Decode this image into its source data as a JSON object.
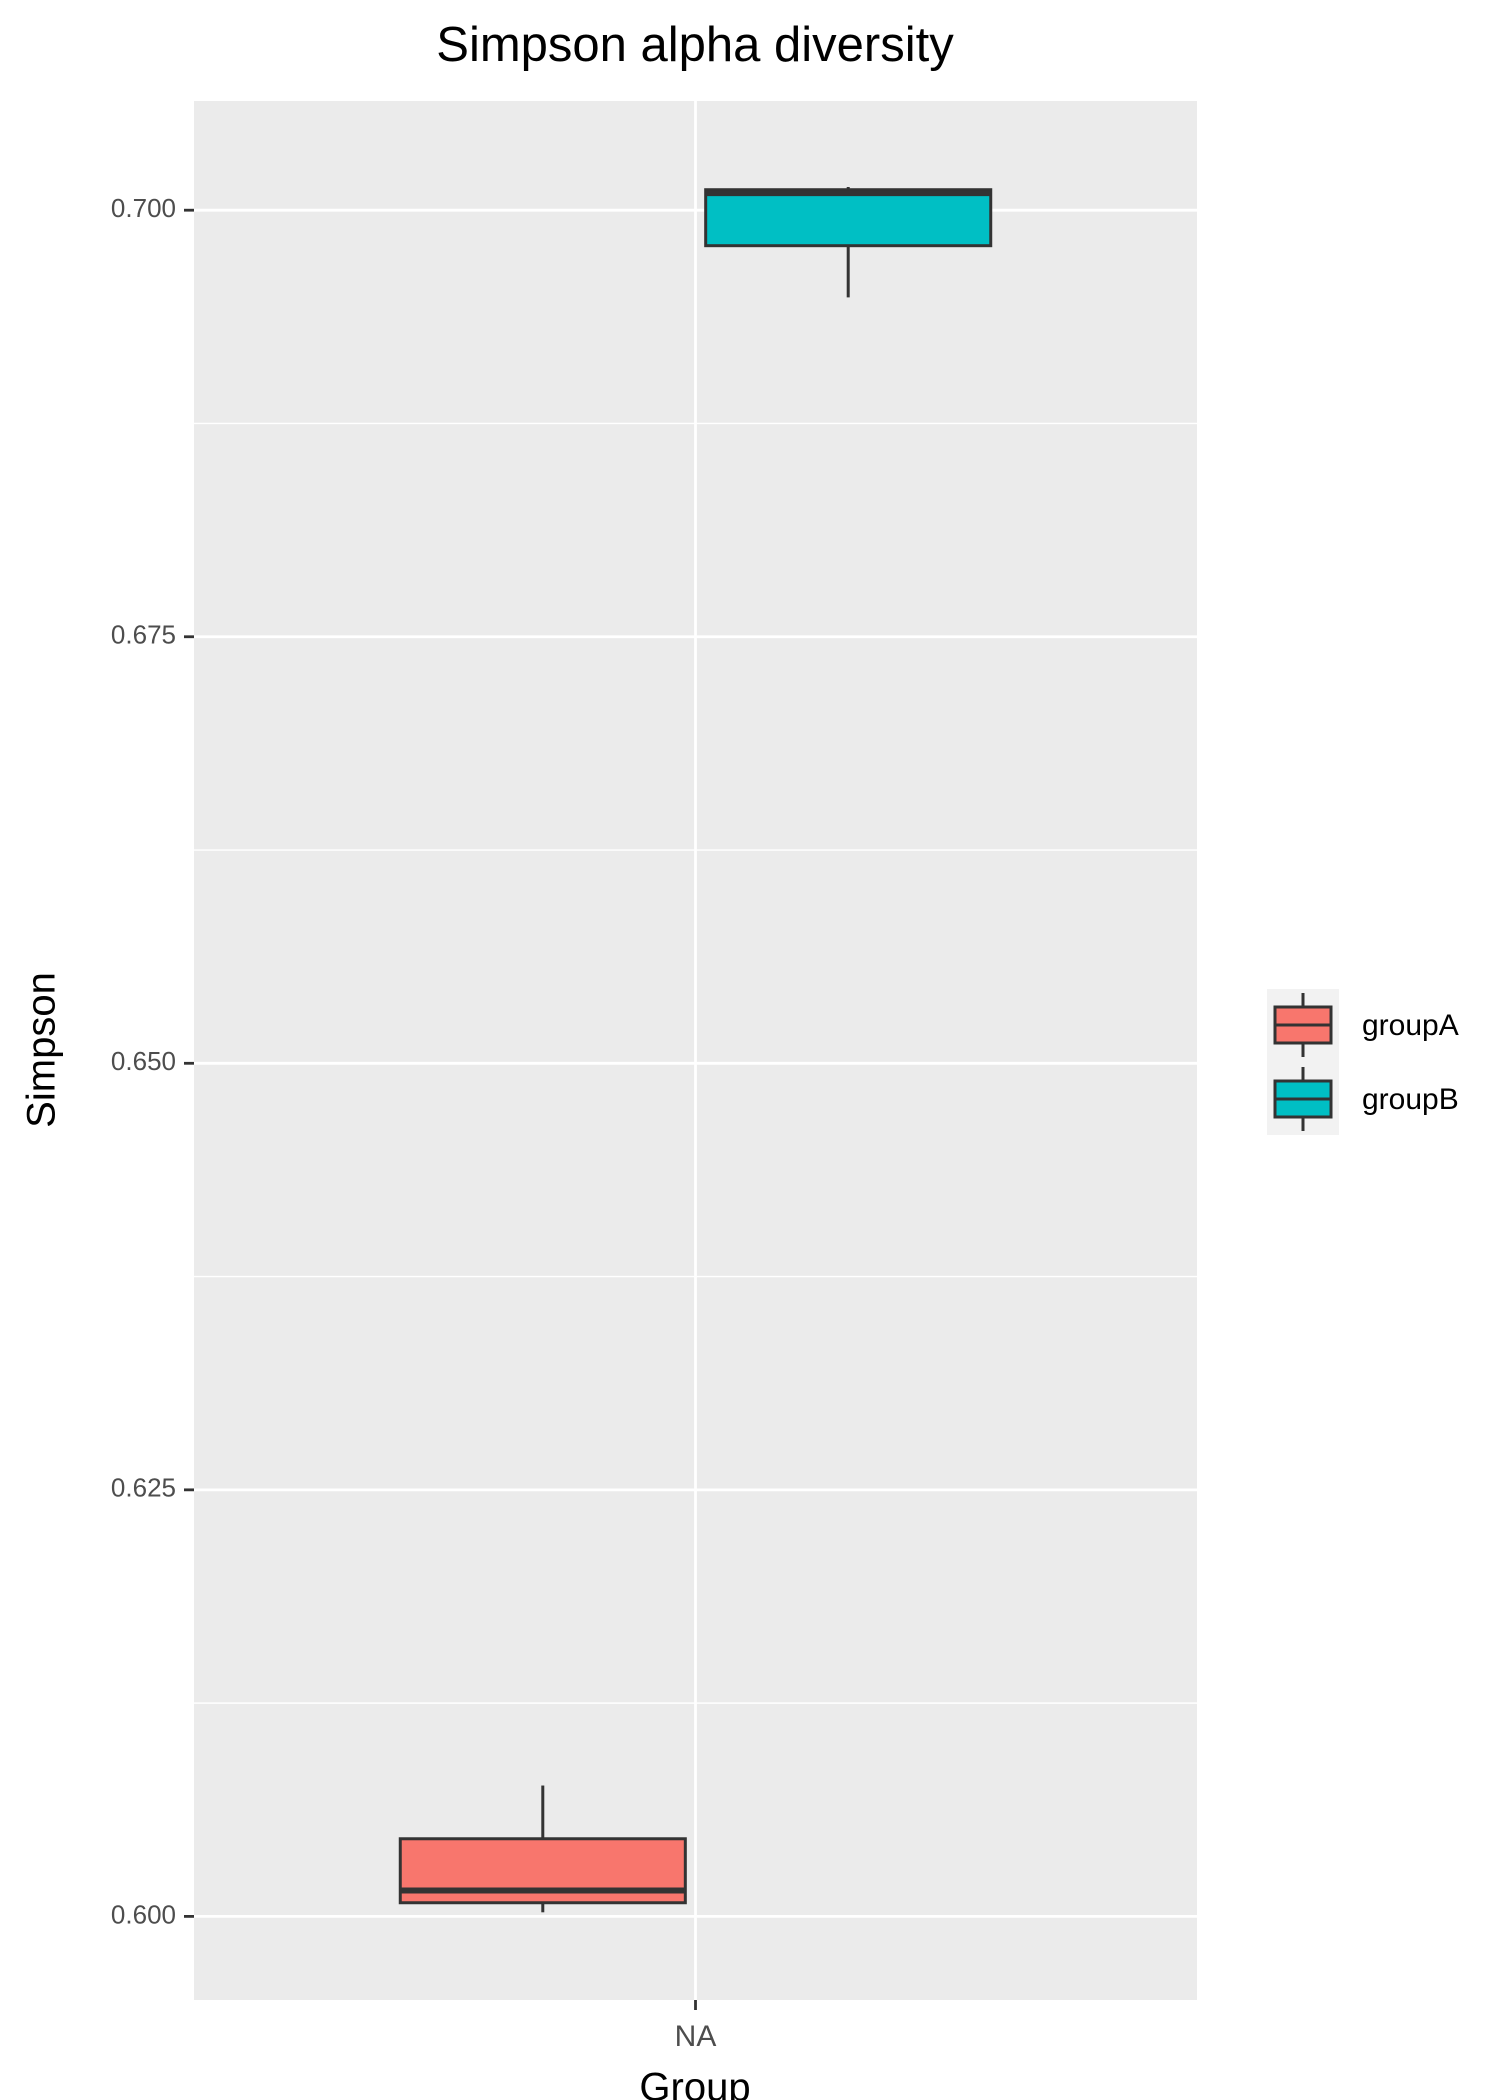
{
  "chart_data": {
    "type": "box",
    "title": "Simpson alpha diversity",
    "x_label": "Group",
    "y_label": "Simpson",
    "categories": [
      "NA"
    ],
    "series": [
      {
        "name": "groupA",
        "color": "#F8766D",
        "low": 0.60024,
        "q1": 0.6008,
        "median": 0.60152,
        "q3": 0.60455,
        "high": 0.60767
      },
      {
        "name": "groupB",
        "color": "#00BFC4",
        "low": 0.69489,
        "q1": 0.69792,
        "median": 0.701,
        "q3": 0.7012,
        "high": 0.70136
      }
    ],
    "ylim": [
      0.5951,
      0.7064
    ],
    "yticks": [
      {
        "value": 0.6,
        "label": "0.600"
      },
      {
        "value": 0.625,
        "label": "0.625"
      },
      {
        "value": 0.65,
        "label": "0.650"
      },
      {
        "value": 0.675,
        "label": "0.675"
      },
      {
        "value": 0.7,
        "label": "0.700"
      }
    ],
    "y_minor_ticks": [
      0.6125,
      0.6375,
      0.6625,
      0.6875
    ],
    "grid": true,
    "legend": "right"
  }
}
